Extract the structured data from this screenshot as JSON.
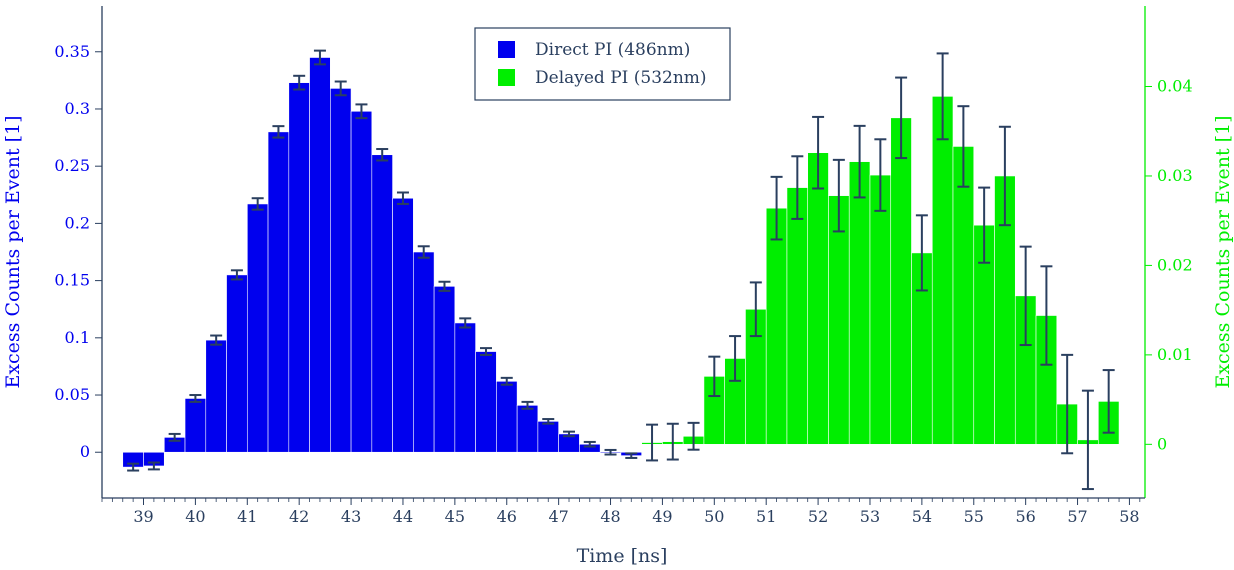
{
  "chart_data": {
    "type": "bar",
    "xlabel": "Time [ns]",
    "ylabel_left": "Excess Counts per Event [1]",
    "ylabel_right": "Excess Counts per Event [1]",
    "xlim": [
      38.2,
      58.3
    ],
    "ylim_left": [
      -0.04,
      0.39
    ],
    "ylim_right": [
      -0.006,
      0.049
    ],
    "x_ticks": [
      39,
      40,
      41,
      42,
      43,
      44,
      45,
      46,
      47,
      48,
      49,
      50,
      51,
      52,
      53,
      54,
      55,
      56,
      57,
      58
    ],
    "y_left_ticks": [
      0,
      0.05,
      0.1,
      0.15,
      0.2,
      0.25,
      0.3,
      0.35
    ],
    "y_left_tick_labels": [
      "0",
      "0.05",
      "0.1",
      "0.15",
      "0.2",
      "0.25",
      "0.3",
      "0.35"
    ],
    "y_right_ticks": [
      0,
      0.01,
      0.02,
      0.03,
      0.04
    ],
    "y_right_tick_labels": [
      "0",
      "0.01",
      "0.02",
      "0.03",
      "0.04"
    ],
    "bin_width": 0.4,
    "legend_position": "top-center",
    "series": [
      {
        "name": "Direct PI (486nm)",
        "color": "#0000ee",
        "axis": "left",
        "x": [
          38.8,
          39.2,
          39.6,
          40.0,
          40.4,
          40.8,
          41.2,
          41.6,
          42.0,
          42.4,
          42.8,
          43.2,
          43.6,
          44.0,
          44.4,
          44.8,
          45.2,
          45.6,
          46.0,
          46.4,
          46.8,
          47.2,
          47.6,
          48.0,
          48.4
        ],
        "values": [
          -0.013,
          -0.012,
          0.013,
          0.047,
          0.098,
          0.155,
          0.217,
          0.28,
          0.323,
          0.345,
          0.318,
          0.298,
          0.26,
          0.222,
          0.175,
          0.145,
          0.113,
          0.088,
          0.062,
          0.041,
          0.027,
          0.016,
          0.007,
          0.0,
          -0.003
        ],
        "errors": [
          0.003,
          0.003,
          0.003,
          0.003,
          0.004,
          0.004,
          0.005,
          0.005,
          0.006,
          0.006,
          0.006,
          0.006,
          0.005,
          0.005,
          0.005,
          0.004,
          0.004,
          0.003,
          0.003,
          0.003,
          0.002,
          0.002,
          0.002,
          0.002,
          0.002
        ]
      },
      {
        "name": "Delayed PI (532nm)",
        "color": "#00ee00",
        "axis": "right",
        "x": [
          48.8,
          49.2,
          49.6,
          50.0,
          50.4,
          50.8,
          51.2,
          51.6,
          52.0,
          52.4,
          52.8,
          53.2,
          53.6,
          54.0,
          54.4,
          54.8,
          55.2,
          55.6,
          56.0,
          56.4,
          56.8,
          57.2,
          57.6
        ],
        "values": [
          0.0002,
          0.0003,
          0.0009,
          0.0076,
          0.0096,
          0.0151,
          0.0264,
          0.0287,
          0.0326,
          0.0278,
          0.0316,
          0.0301,
          0.0365,
          0.0214,
          0.0389,
          0.0333,
          0.0245,
          0.03,
          0.0166,
          0.0144,
          0.0045,
          0.0005,
          0.0048
        ],
        "errors": [
          0.002,
          0.002,
          0.0015,
          0.0022,
          0.0025,
          0.003,
          0.0035,
          0.0035,
          0.004,
          0.004,
          0.004,
          0.004,
          0.0045,
          0.0042,
          0.0048,
          0.0045,
          0.0042,
          0.0055,
          0.0055,
          0.0055,
          0.0055,
          0.0055,
          0.0035
        ]
      }
    ]
  },
  "axis_colors": {
    "left": "#0000ee",
    "right": "#00ee00",
    "frame": "#2a3f5f",
    "error_bar": "#2a3f5f"
  }
}
